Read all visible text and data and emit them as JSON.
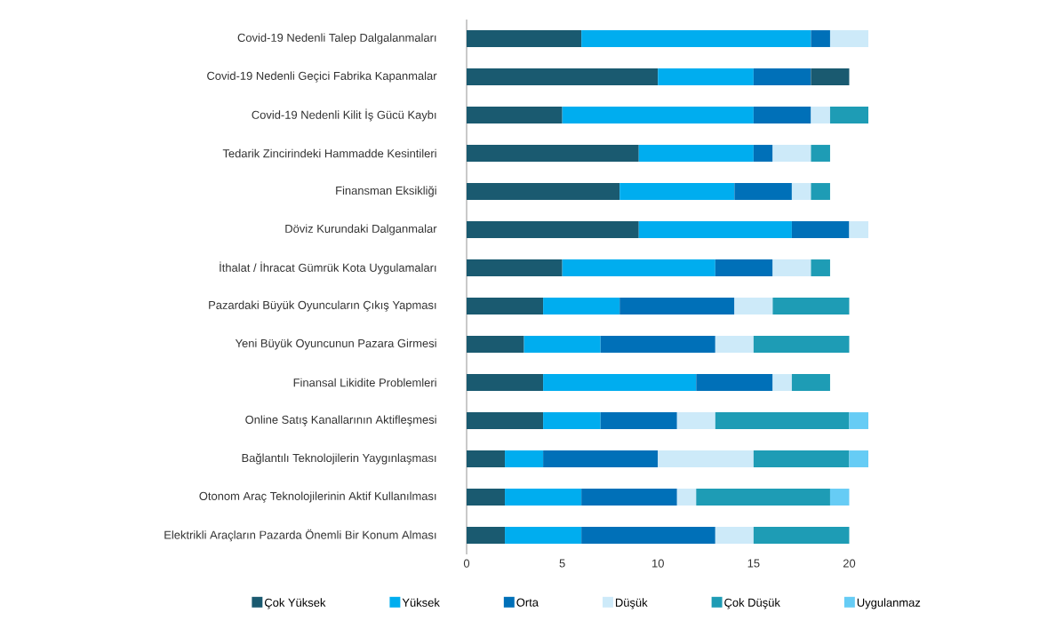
{
  "chart_data": {
    "type": "bar",
    "orientation": "horizontal",
    "stacked": true,
    "categories": [
      "Covid-19 Nedenli Talep Dalgalanmaları",
      "Covid-19 Nedenli Geçici Fabrika Kapanmalar",
      "Covid-19 Nedenli Kilit İş Gücü Kaybı",
      "Tedarik Zincirindeki Hammadde Kesintileri",
      "Finansman Eksikliği",
      "Döviz Kurundaki Dalganmalar",
      "İthalat / İhracat Gümrük Kota Uygulamaları",
      "Pazardaki Büyük Oyuncuların Çıkış Yapması",
      "Yeni Büyük Oyuncunun Pazara Girmesi",
      "Finansal Likidite Problemleri",
      "Online Satış Kanallarının Aktifleşmesi",
      "Bağlantılı Teknolojilerin Yaygınlaşması",
      "Otonom Araç Teknolojilerinin Aktif Kullanılması",
      "Elektrikli Araçların Pazarda Önemli Bir Konum Alması"
    ],
    "series": [
      {
        "name": "Çok Yüksek",
        "color": "#1a5a70",
        "values": [
          6,
          10,
          5,
          9,
          8,
          9,
          5,
          4,
          3,
          4,
          4,
          2,
          2,
          2
        ]
      },
      {
        "name": "Yüksek",
        "color": "#00adef",
        "values": [
          12,
          5,
          10,
          6,
          6,
          8,
          8,
          4,
          4,
          8,
          3,
          2,
          4,
          4
        ]
      },
      {
        "name": "Orta",
        "color": "#0070b8",
        "values": [
          1,
          3,
          3,
          1,
          3,
          3,
          3,
          6,
          6,
          4,
          4,
          6,
          5,
          7
        ]
      },
      {
        "name": "Düşük",
        "color": "#cdeaf9",
        "values": [
          2,
          null,
          1,
          2,
          1,
          1,
          2,
          2,
          2,
          1,
          2,
          5,
          1,
          2
        ]
      },
      {
        "name": "Çok Düşük",
        "color": "#1e9cb5",
        "colors": [
          "#1e9cb5",
          "#1a5a70",
          "#1e9cb5",
          "#1e9cb5",
          "#1e9cb5",
          "#1e9cb5",
          "#1e9cb5",
          "#1e9cb5",
          "#1e9cb5",
          "#1e9cb5",
          "#1e9cb5",
          "#1e9cb5",
          "#1e9cb5",
          "#1e9cb5"
        ],
        "values": [
          null,
          2,
          2,
          1,
          1,
          null,
          1,
          4,
          5,
          2,
          7,
          5,
          7,
          5
        ]
      },
      {
        "name": "Uygulanmaz",
        "color": "#66ccf5",
        "values": [
          null,
          null,
          null,
          null,
          null,
          null,
          null,
          null,
          null,
          null,
          1,
          1,
          1,
          null
        ]
      }
    ],
    "xlim": [
      0,
      21
    ],
    "xticks": [
      0,
      5,
      10,
      15,
      20
    ],
    "legend": "bottom"
  }
}
